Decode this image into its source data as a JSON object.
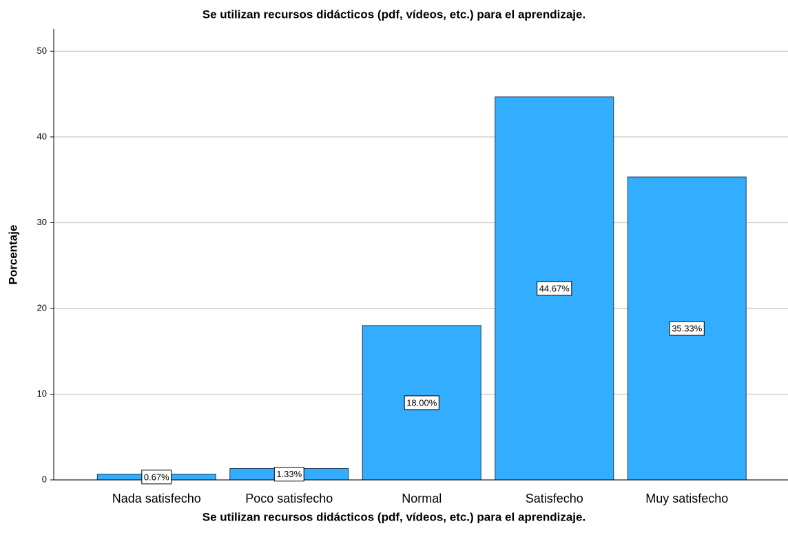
{
  "chart_data": {
    "type": "bar",
    "title": "Se utilizan recursos didácticos (pdf, vídeos, etc.) para el aprendizaje.",
    "x_label": "Se utilizan recursos didácticos (pdf, vídeos, etc.) para el aprendizaje.",
    "y_label": "Porcentaje",
    "categories": [
      "Nada satisfecho",
      "Poco satisfecho",
      "Normal",
      "Satisfecho",
      "Muy satisfecho"
    ],
    "values": [
      0.67,
      1.33,
      18.0,
      44.67,
      35.33
    ],
    "value_labels": [
      "0.67%",
      "1.33%",
      "18.00%",
      "44.67%",
      "35.33%"
    ],
    "color": "#33adff",
    "ylim": [
      0,
      52.6
    ],
    "yticks": [
      0,
      10,
      20,
      30,
      40,
      50
    ],
    "grid": true
  }
}
